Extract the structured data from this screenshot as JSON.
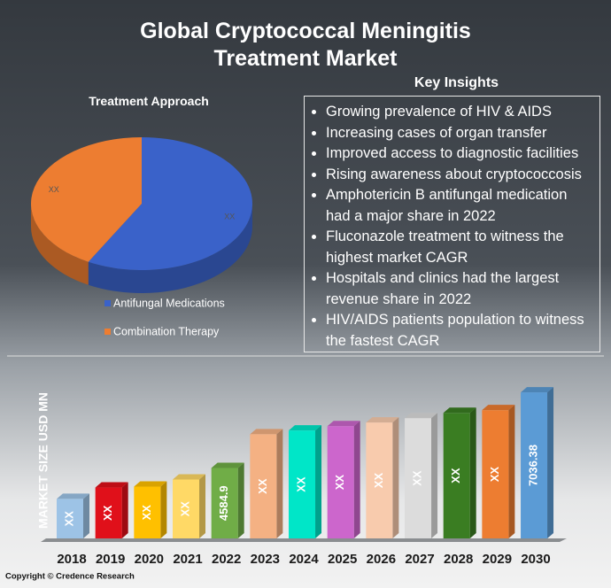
{
  "title": "Global Cryptococcal Meningitis Treatment Market",
  "key_insights": {
    "title": "Key Insights",
    "items": [
      "Growing prevalence of HIV & AIDS",
      "Increasing cases of organ transfer",
      "Improved access to diagnostic facilities",
      "Rising awareness about cryptococcosis",
      "Amphotericin B antifungal medication had a major share in 2022",
      "Fluconazole treatment to witness the highest market CAGR",
      "Hospitals and clinics had the largest revenue share in 2022",
      "HIV/AIDS patients population to witness the fastest CAGR"
    ]
  },
  "chart_data": [
    {
      "type": "pie",
      "title": "Treatment Approach",
      "categories": [
        "Antifungal Medications",
        "Combination Therapy"
      ],
      "values": [
        58,
        42
      ],
      "value_labels": [
        "XX",
        "XX"
      ],
      "colors": [
        "#3a62c9",
        "#ed7d31"
      ]
    },
    {
      "type": "bar",
      "y_label": "MARKET SIZE USD MN",
      "categories": [
        "2018",
        "2019",
        "2020",
        "2021",
        "2022",
        "2023",
        "2024",
        "2025",
        "2026",
        "2027",
        "2028",
        "2029",
        "2030"
      ],
      "values": [
        3580,
        3950,
        3980,
        4210,
        4584.9,
        5680,
        5800,
        5940,
        6060,
        6200,
        6370,
        6460,
        7036.38
      ],
      "value_labels": [
        "XX",
        "XX",
        "XX",
        "XX",
        "4584.9",
        "XX",
        "XX",
        "XX",
        "XX",
        "XX",
        "XX",
        "XX",
        "7036.38"
      ],
      "colors": [
        "#9dc3e6",
        "#e0101a",
        "#ffc000",
        "#ffd966",
        "#70ad47",
        "#f4b183",
        "#00e6c8",
        "#cc66cc",
        "#f8cbad",
        "#dcdcdc",
        "#3a7d22",
        "#ed7d31",
        "#5b9bd5"
      ],
      "ylim": [
        2300,
        7700
      ]
    }
  ],
  "copyright": "Copyright © Credence Research"
}
